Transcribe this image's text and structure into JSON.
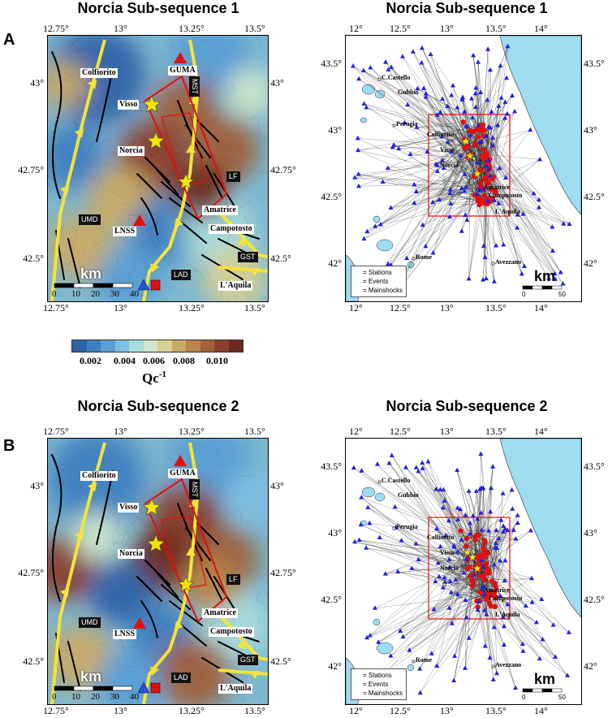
{
  "figure": {
    "panelA": {
      "letter": "A",
      "left_title": "Norcia Sub-sequence 1",
      "right_title": "Norcia Sub-sequence 1"
    },
    "panelB": {
      "letter": "B",
      "left_title": "Norcia Sub-sequence 2",
      "right_title": "Norcia Sub-sequence 2"
    },
    "qmap_ticks": {
      "lon": [
        "12.75°",
        "13°",
        "13.25°",
        "13.5°"
      ],
      "lat": [
        "43°",
        "42.75°",
        "42.5°"
      ]
    },
    "qmap_labels": {
      "colfiorito": "Colfiorito",
      "guma": "GUMA",
      "mst": "MST",
      "visso": "Visso",
      "norcia": "Norcia",
      "lf": "LF",
      "amatrice": "Amatrice",
      "umd": "UMD",
      "lnss": "LNSS",
      "campotosto": "Campotosto",
      "gst": "GST",
      "lad": "LAD",
      "laquila": "L'Aquila",
      "km": "km",
      "scale": [
        "0",
        "10",
        "20",
        "30",
        "40"
      ]
    },
    "region_ticks": {
      "lon": [
        "12°",
        "12.5°",
        "13°",
        "13.5°",
        "14°"
      ],
      "lat": [
        "43.5°",
        "43°",
        "42.5°",
        "42°"
      ]
    },
    "region_labels": {
      "castello": "C.Castello",
      "gubbio": "Gubbio",
      "perugia": "Perugia",
      "colfiorito": "Colfiorito",
      "visso": "Visso",
      "norcia": "Norcia",
      "amatrice": "Amatrice",
      "campotosto": "Campotosto",
      "laquila": "L'Aquila",
      "rome": "Rome",
      "avezzano": "Avezzano",
      "km": "km",
      "scale": [
        "0",
        "50"
      ]
    },
    "legend": {
      "stations": "= Stations",
      "events": "= Events",
      "mainshocks": "= Mainshocks"
    },
    "colorbar": {
      "ticks": [
        "0.002",
        "0.004",
        "0.006",
        "0.008",
        "0.010"
      ],
      "title": "Qc",
      "title_sup": "-1",
      "colors": [
        "#2e63a8",
        "#3f7fc0",
        "#5a9ed4",
        "#7dbfe0",
        "#a6dcda",
        "#cfe6c9",
        "#d8cf94",
        "#c9aa64",
        "#b8864a",
        "#a0603a",
        "#8a3f2a",
        "#6e2a1e"
      ]
    },
    "symbol_colors": {
      "station": "#2222dd",
      "event": "#e01010",
      "mainshock": "#f2e600",
      "fault_yellow": "#f5e33a",
      "sea": "#9fdcf2",
      "box": "#e01010"
    }
  }
}
